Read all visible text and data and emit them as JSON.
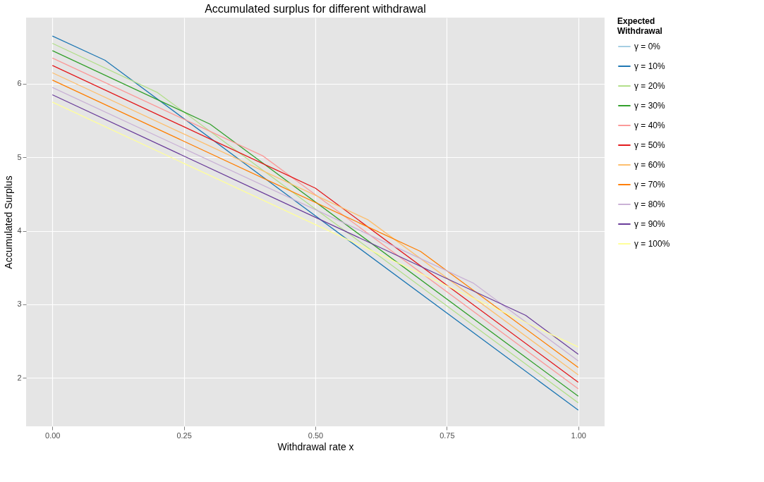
{
  "chart_data": {
    "type": "line",
    "title": "Accumulated surplus for different withdrawal",
    "xlabel": "Withdrawal rate x",
    "ylabel": "Accumulated Surplus",
    "legend_title": "Expected Withdrawal",
    "xlim": [
      -0.05,
      1.05
    ],
    "ylim": [
      1.34,
      6.9
    ],
    "xticks": [
      {
        "value": 0,
        "label": "0.00"
      },
      {
        "value": 0.25,
        "label": "0.25"
      },
      {
        "value": 0.5,
        "label": "0.50"
      },
      {
        "value": 0.75,
        "label": "0.75"
      },
      {
        "value": 1,
        "label": "1.00"
      }
    ],
    "yticks": [
      2,
      3,
      4,
      5,
      6
    ],
    "grid": true,
    "legend": "right",
    "series": [
      {
        "name": "γ = 0%",
        "color": "#a6cee3"
      },
      {
        "name": "γ = 10%",
        "color": "#1f78b4",
        "x": [
          0,
          0.1,
          1
        ],
        "values": [
          6.65,
          6.32,
          1.56
        ]
      },
      {
        "name": "γ = 20%",
        "color": "#b2df8a",
        "x": [
          0,
          0.2,
          1
        ],
        "values": [
          6.55,
          5.88,
          1.66
        ]
      },
      {
        "name": "γ = 30%",
        "color": "#33a02c",
        "x": [
          0,
          0.3,
          1
        ],
        "values": [
          6.45,
          5.45,
          1.75
        ]
      },
      {
        "name": "γ = 40%",
        "color": "#fb9a99",
        "x": [
          0,
          0.4,
          1
        ],
        "values": [
          6.35,
          5.02,
          1.85
        ]
      },
      {
        "name": "γ = 50%",
        "color": "#e31a1c",
        "x": [
          0,
          0.5,
          1
        ],
        "values": [
          6.25,
          4.58,
          1.94
        ]
      },
      {
        "name": "γ = 60%",
        "color": "#fdbf6f",
        "x": [
          0,
          0.6,
          1
        ],
        "values": [
          6.15,
          4.15,
          2.04
        ]
      },
      {
        "name": "γ = 70%",
        "color": "#ff7f00",
        "x": [
          0,
          0.7,
          1
        ],
        "values": [
          6.05,
          3.72,
          2.14
        ]
      },
      {
        "name": "γ = 80%",
        "color": "#cab2d6",
        "x": [
          0,
          0.8,
          1
        ],
        "values": [
          5.95,
          3.29,
          2.23
        ]
      },
      {
        "name": "γ = 90%",
        "color": "#6a3d9a",
        "x": [
          0,
          0.9,
          1
        ],
        "values": [
          5.85,
          2.85,
          2.32
        ]
      },
      {
        "name": "γ = 100%",
        "color": "#ffff99",
        "x": [
          0,
          1
        ],
        "values": [
          5.75,
          2.42
        ]
      }
    ]
  }
}
